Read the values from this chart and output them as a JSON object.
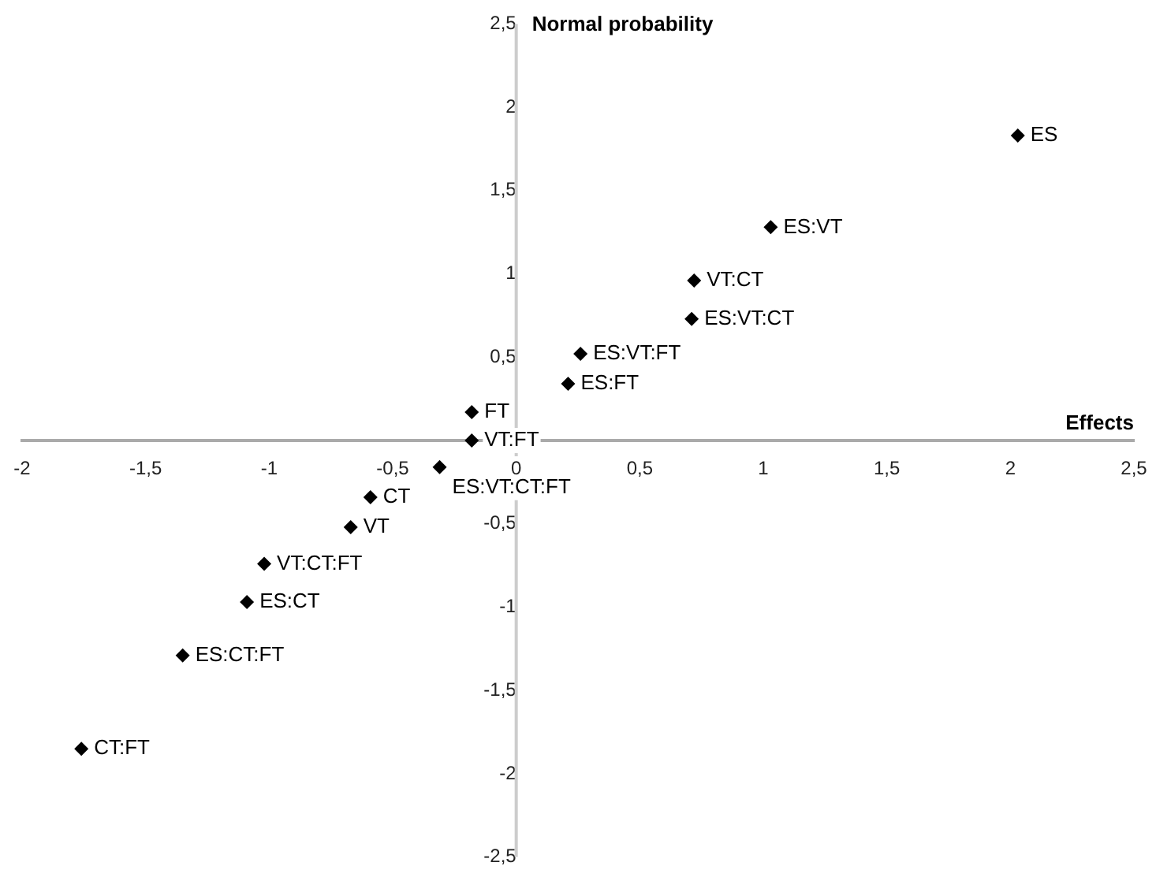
{
  "chart_data": {
    "type": "scatter",
    "xlabel": "Effects",
    "ylabel": "Normal probability",
    "x": [
      2.03,
      1.03,
      0.72,
      0.71,
      0.26,
      0.21,
      -0.18,
      -0.18,
      -0.31,
      -0.59,
      -0.67,
      -1.02,
      -1.09,
      -1.35,
      -1.76
    ],
    "values": [
      1.83,
      1.28,
      0.96,
      0.73,
      0.52,
      0.34,
      0.17,
      0.0,
      -0.16,
      -0.34,
      -0.52,
      -0.74,
      -0.97,
      -1.29,
      -1.85
    ],
    "color": "#000000",
    "marker": "diamond",
    "grid": false,
    "legend": false,
    "xlim": [
      -2,
      2.5
    ],
    "ylim": [
      -2.5,
      2.5
    ],
    "xticks": [
      {
        "value": -2,
        "label": "-2"
      },
      {
        "value": -1.5,
        "label": "-1,5"
      },
      {
        "value": -1,
        "label": "-1"
      },
      {
        "value": -0.5,
        "label": "-0,5"
      },
      {
        "value": 0,
        "label": "0"
      },
      {
        "value": 0.5,
        "label": "0,5"
      },
      {
        "value": 1,
        "label": "1"
      },
      {
        "value": 1.5,
        "label": "1,5"
      },
      {
        "value": 2,
        "label": "2"
      },
      {
        "value": 2.5,
        "label": "2,5"
      }
    ],
    "yticks": [
      {
        "value": -2.5,
        "label": "-2,5"
      },
      {
        "value": -2,
        "label": "-2"
      },
      {
        "value": -1.5,
        "label": "-1,5"
      },
      {
        "value": -1,
        "label": "-1"
      },
      {
        "value": -0.5,
        "label": "-0,5"
      },
      {
        "value": 0.5,
        "label": "0,5"
      },
      {
        "value": 1,
        "label": "1"
      },
      {
        "value": 1.5,
        "label": "1,5"
      },
      {
        "value": 2,
        "label": "2"
      },
      {
        "value": 2.5,
        "label": "2,5"
      }
    ],
    "annotations": [
      {
        "text": "ES",
        "x": 2.03,
        "y": 1.83
      },
      {
        "text": "ES:VT",
        "x": 1.03,
        "y": 1.28
      },
      {
        "text": "VT:CT",
        "x": 0.72,
        "y": 0.96
      },
      {
        "text": "ES:VT:CT",
        "x": 0.71,
        "y": 0.73
      },
      {
        "text": "ES:VT:FT",
        "x": 0.26,
        "y": 0.52
      },
      {
        "text": "ES:FT",
        "x": 0.21,
        "y": 0.34
      },
      {
        "text": "FT",
        "x": -0.18,
        "y": 0.17
      },
      {
        "text": "VT:FT",
        "x": -0.18,
        "y": 0.0
      },
      {
        "text": "ES:VT:CT:FT",
        "x": -0.31,
        "y": -0.16
      },
      {
        "text": "CT",
        "x": -0.59,
        "y": -0.34
      },
      {
        "text": "VT",
        "x": -0.67,
        "y": -0.52
      },
      {
        "text": "VT:CT:FT",
        "x": -1.02,
        "y": -0.74
      },
      {
        "text": "ES:CT",
        "x": -1.09,
        "y": -0.97
      },
      {
        "text": "ES:CT:FT",
        "x": -1.35,
        "y": -1.29
      },
      {
        "text": "CT:FT",
        "x": -1.76,
        "y": -1.85
      }
    ]
  }
}
